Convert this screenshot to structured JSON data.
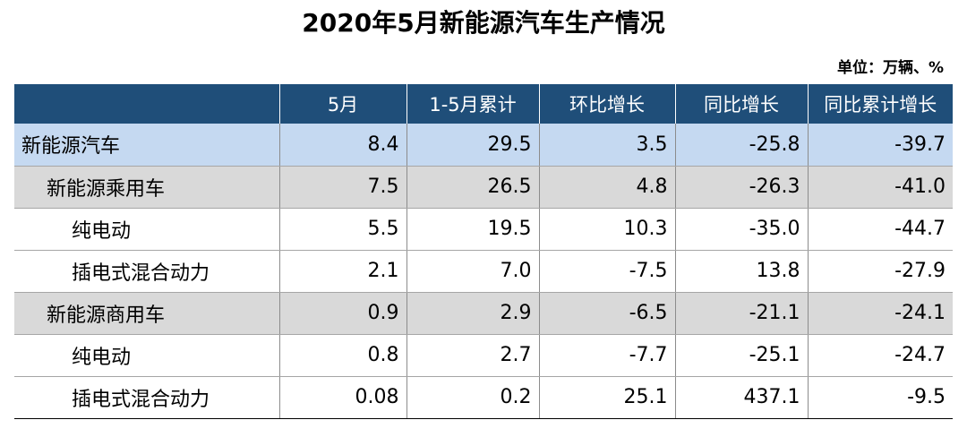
{
  "title": "2020年5月新能源汽车生产情况",
  "unit_note": "单位：万辆、%",
  "chart_data": {
    "type": "table",
    "title": "2020年5月新能源汽车生产情况",
    "columns": [
      "",
      "5月",
      "1-5月累计",
      "环比增长",
      "同比增长",
      "同比累计增长"
    ],
    "rows": [
      {
        "label": "新能源汽车",
        "level": 0,
        "values": [
          "8.4",
          "29.5",
          "3.5",
          "-25.8",
          "-39.7"
        ]
      },
      {
        "label": "新能源乘用车",
        "level": 1,
        "values": [
          "7.5",
          "26.5",
          "4.8",
          "-26.3",
          "-41.0"
        ]
      },
      {
        "label": "纯电动",
        "level": 2,
        "values": [
          "5.5",
          "19.5",
          "10.3",
          "-35.0",
          "-44.7"
        ]
      },
      {
        "label": "插电式混合动力",
        "level": 2,
        "values": [
          "2.1",
          "7.0",
          "-7.5",
          "13.8",
          "-27.9"
        ]
      },
      {
        "label": "新能源商用车",
        "level": 1,
        "values": [
          "0.9",
          "2.9",
          "-6.5",
          "-21.1",
          "-24.1"
        ]
      },
      {
        "label": "纯电动",
        "level": 2,
        "values": [
          "0.8",
          "2.7",
          "-7.7",
          "-25.1",
          "-24.7"
        ]
      },
      {
        "label": "插电式混合动力",
        "level": 2,
        "values": [
          "0.08",
          "0.2",
          "25.1",
          "437.1",
          "-9.5"
        ]
      }
    ]
  },
  "colors": {
    "header_bg": "#1f4e79",
    "header_text": "#ffffff",
    "level0_bg": "#c5d9f1",
    "level1_bg": "#d9d9d9",
    "level2_bg": "#ffffff"
  }
}
